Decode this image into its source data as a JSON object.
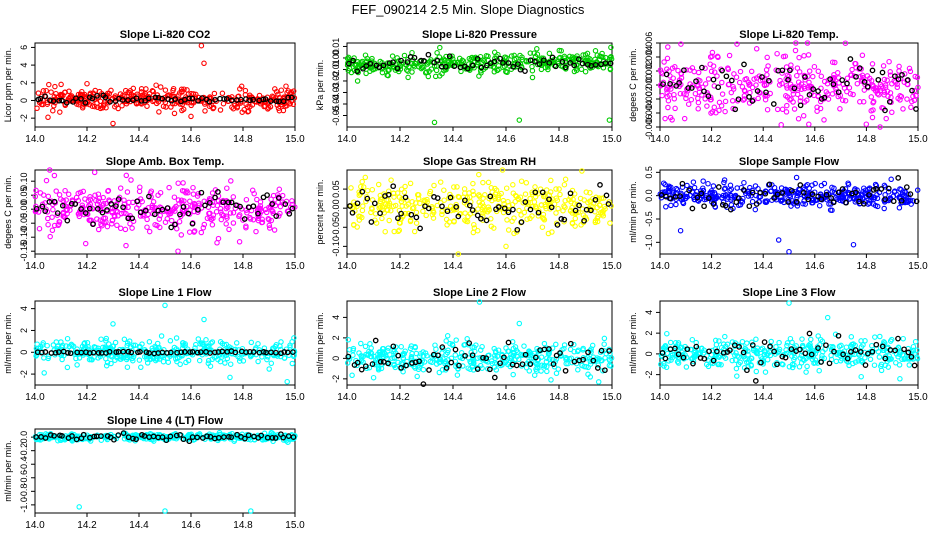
{
  "page": {
    "title": "FEF_090214  2.5 Min. Slope Diagnostics"
  },
  "chart_data": [
    {
      "id": "p1",
      "type": "scatter",
      "title": "Slope Li-820 CO2",
      "ylabel": "Licor ppm per min.",
      "color": "#ff0000",
      "xlim": [
        14.0,
        15.0
      ],
      "ylim": [
        -3,
        6.5
      ],
      "yticks": [
        -2,
        0,
        2,
        4,
        6
      ],
      "ytick_labels": [
        "-2",
        "0",
        "2",
        "4",
        "6"
      ],
      "xticks": [
        14.0,
        14.2,
        14.4,
        14.6,
        14.8,
        15.0
      ],
      "xtick_labels": [
        "14.0",
        "14.2",
        "14.4",
        "14.6",
        "14.8",
        "15.0"
      ],
      "cloud": {
        "center": 0.1,
        "spread": 0.6,
        "trend": -0.2
      },
      "black_spread": 0.2,
      "outliers": [
        [
          14.64,
          6.2
        ],
        [
          14.65,
          4.2
        ],
        [
          14.3,
          -2.6
        ],
        [
          14.05,
          -1.9
        ],
        [
          14.6,
          -1.8
        ],
        [
          14.2,
          1.9
        ]
      ]
    },
    {
      "id": "p2",
      "type": "scatter",
      "title": "Slope Li-820 Pressure",
      "ylabel": "kPa per min.",
      "color": "#00cc00",
      "xlim": [
        14.0,
        15.0
      ],
      "ylim": [
        -0.06,
        0.013
      ],
      "yticks": [
        -0.05,
        -0.04,
        -0.03,
        -0.02,
        -0.01,
        0.0,
        0.01
      ],
      "ytick_labels": [
        "-0.05",
        "-0.04",
        "-0.03",
        "-0.02",
        "-0.01",
        "0.00",
        "0.01"
      ],
      "xticks": [
        14.0,
        14.2,
        14.4,
        14.6,
        14.8,
        15.0
      ],
      "xtick_labels": [
        "14.0",
        "14.2",
        "14.4",
        "14.6",
        "14.8",
        "15.0"
      ],
      "cloud": {
        "center": -0.005,
        "spread": 0.004,
        "trend": 0.005
      },
      "black_spread": 0.003,
      "outliers": [
        [
          14.33,
          -0.056
        ],
        [
          14.65,
          -0.054
        ],
        [
          14.99,
          -0.054
        ],
        [
          14.04,
          -0.02
        ],
        [
          14.7,
          -0.017
        ]
      ]
    },
    {
      "id": "p3",
      "type": "scatter",
      "title": "Slope Li-820 Temp.",
      "ylabel": "degees C per min.",
      "color": "#ff00ff",
      "xlim": [
        14.0,
        15.0
      ],
      "ylim": [
        -0.006,
        0.006
      ],
      "yticks": [
        -0.006,
        -0.004,
        -0.002,
        0.0,
        0.002,
        0.004,
        0.006
      ],
      "ytick_labels": [
        "-0.006",
        "-0.004",
        "-0.002",
        "0.000",
        "0.002",
        "0.004",
        "0.006"
      ],
      "xticks": [
        14.0,
        14.2,
        14.4,
        14.6,
        14.8,
        15.0
      ],
      "xtick_labels": [
        "14.0",
        "14.2",
        "14.4",
        "14.6",
        "14.8",
        "15.0"
      ],
      "cloud": {
        "center": 0.0,
        "spread": 0.0022,
        "trend": 0.0
      },
      "black_spread": 0.0018,
      "outliers": []
    },
    {
      "id": "p4",
      "type": "scatter",
      "title": "Slope Amb. Box Temp.",
      "ylabel": "degees C per min.",
      "color": "#ff00ff",
      "xlim": [
        14.0,
        15.0
      ],
      "ylim": [
        -0.16,
        0.14
      ],
      "yticks": [
        -0.15,
        -0.1,
        -0.05,
        0.0,
        0.05,
        0.1
      ],
      "ytick_labels": [
        "-0.15",
        "-0.10",
        "-0.05",
        "0.00",
        "0.05",
        "0.10"
      ],
      "xticks": [
        14.0,
        14.2,
        14.4,
        14.6,
        14.8,
        15.0
      ],
      "xtick_labels": [
        "14.0",
        "14.2",
        "14.4",
        "14.6",
        "14.8",
        "15.0"
      ],
      "cloud": {
        "center": 0.0,
        "spread": 0.045,
        "trend": 0.0
      },
      "black_spread": 0.03,
      "outliers": [
        [
          14.55,
          -0.15
        ],
        [
          14.35,
          -0.13
        ],
        [
          14.7,
          -0.12
        ]
      ]
    },
    {
      "id": "p5",
      "type": "scatter",
      "title": "Slope Gas Stream RH",
      "ylabel": "percent per min.",
      "color": "#ffff00",
      "xlim": [
        14.0,
        15.0
      ],
      "ylim": [
        -0.12,
        0.1
      ],
      "yticks": [
        -0.1,
        -0.05,
        0.0,
        0.05
      ],
      "ytick_labels": [
        "-0.10",
        "-0.05",
        "0.00",
        "0.05"
      ],
      "xticks": [
        14.0,
        14.2,
        14.4,
        14.6,
        14.8,
        15.0
      ],
      "xtick_labels": [
        "14.0",
        "14.2",
        "14.4",
        "14.6",
        "14.8",
        "15.0"
      ],
      "cloud": {
        "center": 0.005,
        "spread": 0.03,
        "trend": 0.0
      },
      "black_spread": 0.025,
      "outliers": [
        [
          14.42,
          -0.12
        ],
        [
          14.6,
          -0.1
        ]
      ]
    },
    {
      "id": "p6",
      "type": "scatter",
      "title": "Slope Sample Flow",
      "ylabel": "ml/min per min.",
      "color": "#0000ff",
      "xlim": [
        14.0,
        15.0
      ],
      "ylim": [
        -1.25,
        0.55
      ],
      "yticks": [
        -1.0,
        -0.5,
        0.0,
        0.5
      ],
      "ytick_labels": [
        "-1.0",
        "-0.5",
        "0.0",
        "0.5"
      ],
      "xticks": [
        14.0,
        14.2,
        14.4,
        14.6,
        14.8,
        15.0
      ],
      "xtick_labels": [
        "14.0",
        "14.2",
        "14.4",
        "14.6",
        "14.8",
        "15.0"
      ],
      "cloud": {
        "center": 0.0,
        "spread": 0.12,
        "trend": 0.0
      },
      "black_spread": 0.15,
      "outliers": [
        [
          14.5,
          -1.2
        ],
        [
          14.75,
          -1.05
        ],
        [
          14.08,
          -0.75
        ],
        [
          14.46,
          -0.95
        ]
      ]
    },
    {
      "id": "p7",
      "type": "scatter",
      "title": "Slope Line 1 Flow",
      "ylabel": "ml/min per min.",
      "color": "#00ffff",
      "xlim": [
        14.0,
        15.0
      ],
      "ylim": [
        -3,
        4.7
      ],
      "yticks": [
        -2,
        0,
        2,
        4
      ],
      "ytick_labels": [
        "-2",
        "0",
        "2",
        "4"
      ],
      "xticks": [
        14.0,
        14.2,
        14.4,
        14.6,
        14.8,
        15.0
      ],
      "xtick_labels": [
        "14.0",
        "14.2",
        "14.4",
        "14.6",
        "14.8",
        "15.0"
      ],
      "cloud": {
        "center": 0.0,
        "spread": 0.55,
        "trend": 0.0
      },
      "black_spread": 0.05,
      "outliers": [
        [
          14.5,
          4.3
        ],
        [
          14.3,
          2.6
        ],
        [
          14.65,
          3.0
        ],
        [
          14.97,
          -2.7
        ],
        [
          14.75,
          -2.3
        ]
      ]
    },
    {
      "id": "p8",
      "type": "scatter",
      "title": "Slope Line 2 Flow",
      "ylabel": "ml/min per min.",
      "color": "#00ffff",
      "xlim": [
        14.0,
        15.0
      ],
      "ylim": [
        -2.6,
        5.6
      ],
      "yticks": [
        -2,
        0,
        2,
        4
      ],
      "ytick_labels": [
        "-2",
        "0",
        "2",
        "4"
      ],
      "xticks": [
        14.0,
        14.2,
        14.4,
        14.6,
        14.8,
        15.0
      ],
      "xtick_labels": [
        "14.0",
        "14.2",
        "14.4",
        "14.6",
        "14.8",
        "15.0"
      ],
      "cloud": {
        "center": 0.0,
        "spread": 0.7,
        "trend": 0.0
      },
      "black_spread": 0.8,
      "outliers": [
        [
          14.5,
          5.5
        ],
        [
          14.65,
          3.4
        ],
        [
          14.38,
          2.2
        ],
        [
          14.77,
          -2.1
        ],
        [
          14.95,
          -2.3
        ]
      ]
    },
    {
      "id": "p9",
      "type": "scatter",
      "title": "Slope Line 3 Flow",
      "ylabel": "ml/min per min.",
      "color": "#00ffff",
      "xlim": [
        14.0,
        15.0
      ],
      "ylim": [
        -3,
        5.1
      ],
      "yticks": [
        -2,
        0,
        2,
        4
      ],
      "ytick_labels": [
        "-2",
        "0",
        "2",
        "4"
      ],
      "xticks": [
        14.0,
        14.2,
        14.4,
        14.6,
        14.8,
        15.0
      ],
      "xtick_labels": [
        "14.0",
        "14.2",
        "14.4",
        "14.6",
        "14.8",
        "15.0"
      ],
      "cloud": {
        "center": 0.0,
        "spread": 0.7,
        "trend": 0.0
      },
      "black_spread": 0.8,
      "outliers": [
        [
          14.5,
          4.9
        ],
        [
          14.65,
          3.5
        ],
        [
          14.93,
          -2.4
        ],
        [
          14.78,
          -2.2
        ]
      ]
    },
    {
      "id": "p10",
      "type": "scatter",
      "title": "Slope Line 4 (LT) Flow",
      "ylabel": "ml/min per min.",
      "color": "#00ffff",
      "xlim": [
        14.0,
        15.0
      ],
      "ylim": [
        -1.12,
        0.12
      ],
      "yticks": [
        -1.0,
        -0.8,
        -0.6,
        -0.4,
        -0.2,
        0.0
      ],
      "ytick_labels": [
        "-1.0",
        "-0.8",
        "-0.6",
        "-0.4",
        "-0.2",
        "0.0"
      ],
      "xticks": [
        14.0,
        14.2,
        14.4,
        14.6,
        14.8,
        15.0
      ],
      "xtick_labels": [
        "14.0",
        "14.2",
        "14.4",
        "14.6",
        "14.8",
        "15.0"
      ],
      "cloud": {
        "center": 0.0,
        "spread": 0.025,
        "trend": 0.0
      },
      "black_spread": 0.02,
      "outliers": [
        [
          14.17,
          -1.03
        ],
        [
          14.5,
          -1.09
        ],
        [
          14.83,
          -1.09
        ]
      ]
    }
  ]
}
